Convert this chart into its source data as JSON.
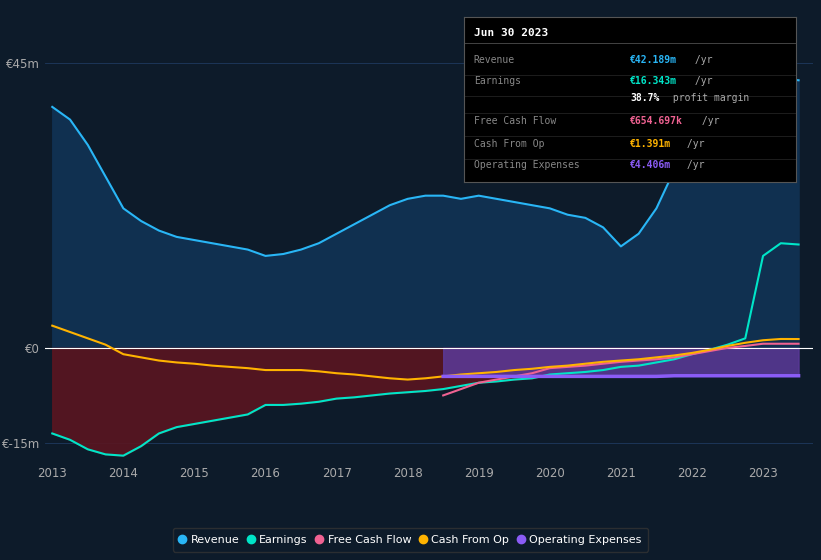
{
  "bg_color": "#0d1b2a",
  "plot_bg_color": "#0d1b2a",
  "grid_color": "#1e3a5f",
  "zero_line_color": "#ffffff",
  "years": [
    2013.0,
    2013.25,
    2013.5,
    2013.75,
    2014.0,
    2014.25,
    2014.5,
    2014.75,
    2015.0,
    2015.25,
    2015.5,
    2015.75,
    2016.0,
    2016.25,
    2016.5,
    2016.75,
    2017.0,
    2017.25,
    2017.5,
    2017.75,
    2018.0,
    2018.25,
    2018.5,
    2018.75,
    2019.0,
    2019.25,
    2019.5,
    2019.75,
    2020.0,
    2020.25,
    2020.5,
    2020.75,
    2021.0,
    2021.25,
    2021.5,
    2021.75,
    2022.0,
    2022.25,
    2022.5,
    2022.75,
    2023.0,
    2023.25,
    2023.5
  ],
  "revenue": [
    38.0,
    36.0,
    32.0,
    27.0,
    22.0,
    20.0,
    18.5,
    17.5,
    17.0,
    16.5,
    16.0,
    15.5,
    14.5,
    14.8,
    15.5,
    16.5,
    18.0,
    19.5,
    21.0,
    22.5,
    23.5,
    24.0,
    24.0,
    23.5,
    24.0,
    23.5,
    23.0,
    22.5,
    22.0,
    21.0,
    20.5,
    19.0,
    16.0,
    18.0,
    22.0,
    28.0,
    33.0,
    37.0,
    40.0,
    41.5,
    42.0,
    42.5,
    42.2
  ],
  "earnings": [
    -13.5,
    -14.5,
    -16.0,
    -16.8,
    -17.0,
    -15.5,
    -13.5,
    -12.5,
    -12.0,
    -11.5,
    -11.0,
    -10.5,
    -9.0,
    -9.0,
    -8.8,
    -8.5,
    -8.0,
    -7.8,
    -7.5,
    -7.2,
    -7.0,
    -6.8,
    -6.5,
    -6.0,
    -5.5,
    -5.3,
    -5.0,
    -4.8,
    -4.2,
    -4.0,
    -3.8,
    -3.5,
    -3.0,
    -2.8,
    -2.3,
    -1.8,
    -1.0,
    -0.3,
    0.5,
    1.5,
    14.5,
    16.5,
    16.3
  ],
  "free_cash_flow": [
    null,
    null,
    null,
    null,
    null,
    null,
    null,
    null,
    null,
    null,
    null,
    null,
    null,
    null,
    null,
    null,
    null,
    null,
    null,
    null,
    null,
    null,
    -7.5,
    -6.5,
    -5.5,
    -5.0,
    -4.5,
    -4.0,
    -3.2,
    -3.0,
    -2.8,
    -2.5,
    -2.2,
    -2.0,
    -1.8,
    -1.5,
    -1.0,
    -0.5,
    0.0,
    0.3,
    0.65,
    0.65,
    0.65
  ],
  "cash_from_op": [
    3.5,
    2.5,
    1.5,
    0.5,
    -1.0,
    -1.5,
    -2.0,
    -2.3,
    -2.5,
    -2.8,
    -3.0,
    -3.2,
    -3.5,
    -3.5,
    -3.5,
    -3.7,
    -4.0,
    -4.2,
    -4.5,
    -4.8,
    -5.0,
    -4.8,
    -4.5,
    -4.2,
    -4.0,
    -3.8,
    -3.5,
    -3.3,
    -3.0,
    -2.8,
    -2.5,
    -2.2,
    -2.0,
    -1.8,
    -1.5,
    -1.2,
    -0.8,
    -0.3,
    0.3,
    0.8,
    1.2,
    1.4,
    1.39
  ],
  "op_expenses": [
    null,
    null,
    null,
    null,
    null,
    null,
    null,
    null,
    null,
    null,
    null,
    null,
    null,
    null,
    null,
    null,
    null,
    null,
    null,
    null,
    null,
    null,
    -4.5,
    -4.5,
    -4.5,
    -4.5,
    -4.5,
    -4.5,
    -4.5,
    -4.5,
    -4.5,
    -4.5,
    -4.5,
    -4.5,
    -4.5,
    -4.4,
    -4.4,
    -4.4,
    -4.4,
    -4.4,
    -4.4,
    -4.4,
    -4.4
  ],
  "ylim": [
    -18,
    50
  ],
  "yticks": [
    -15,
    0,
    45
  ],
  "ytick_labels": [
    "€-15m",
    "€0",
    "€45m"
  ],
  "xlim": [
    2012.9,
    2023.7
  ],
  "xticks": [
    2013,
    2014,
    2015,
    2016,
    2017,
    2018,
    2019,
    2020,
    2021,
    2022,
    2023
  ],
  "revenue_color": "#29b6f6",
  "revenue_fill_color": "#103050",
  "earnings_color": "#00e5c8",
  "earnings_fill_dark": "#3a1018",
  "earnings_fill_neg_color": "#5a1520",
  "free_cash_flow_color": "#f06292",
  "cash_from_op_color": "#ffb300",
  "op_expenses_color": "#8b5cf6",
  "op_expenses_fill_color": "#5b3a9a",
  "legend_items": [
    {
      "label": "Revenue",
      "color": "#29b6f6"
    },
    {
      "label": "Earnings",
      "color": "#00e5c8"
    },
    {
      "label": "Free Cash Flow",
      "color": "#f06292"
    },
    {
      "label": "Cash From Op",
      "color": "#ffb300"
    },
    {
      "label": "Operating Expenses",
      "color": "#8b5cf6"
    }
  ],
  "tooltip": {
    "date": "Jun 30 2023",
    "rows": [
      {
        "label": "Revenue",
        "value": "€42.189m",
        "suffix": " /yr",
        "value_color": "#29b6f6"
      },
      {
        "label": "Earnings",
        "value": "€16.343m",
        "suffix": " /yr",
        "value_color": "#00e5c8"
      },
      {
        "label": "",
        "value": "38.7%",
        "suffix": " profit margin",
        "value_color": "#ffffff"
      },
      {
        "label": "Free Cash Flow",
        "value": "€654.697k",
        "suffix": " /yr",
        "value_color": "#f06292"
      },
      {
        "label": "Cash From Op",
        "value": "€1.391m",
        "suffix": " /yr",
        "value_color": "#ffb300"
      },
      {
        "label": "Operating Expenses",
        "value": "€4.406m",
        "suffix": " /yr",
        "value_color": "#8b5cf6"
      }
    ]
  }
}
